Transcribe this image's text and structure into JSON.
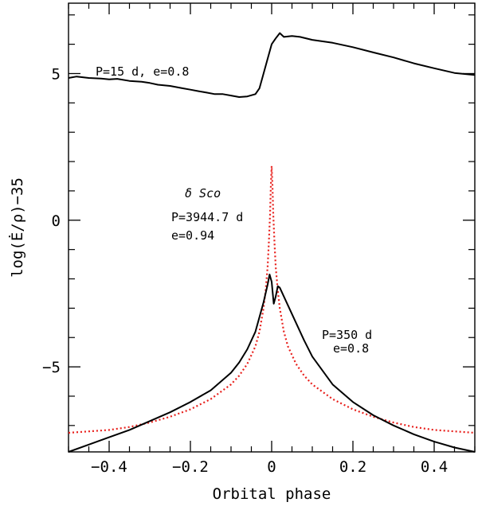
{
  "chart_data": {
    "type": "line",
    "title": "",
    "xlabel": "Orbital phase",
    "ylabel": "log(Ė/ρ)−35",
    "xlim": [
      -0.5,
      0.5
    ],
    "ylim": [
      -7.9,
      7.4
    ],
    "x_ticks_major": [
      -0.4,
      -0.2,
      0,
      0.2,
      0.4
    ],
    "x_tick_labels": [
      "−0.4",
      "−0.2",
      "0",
      "0.2",
      "0.4"
    ],
    "x_ticks_minor_step": 0.05,
    "y_ticks_major": [
      -5,
      0,
      5
    ],
    "y_tick_labels": [
      "−5",
      "0",
      "5"
    ],
    "y_ticks_minor_step": 1,
    "grid": false,
    "colors": {
      "solid": "#000000",
      "dotted": "#e8201c"
    },
    "series": [
      {
        "name": "P=15 d, e=0.8",
        "style": "solid",
        "color": "#000000",
        "points": [
          [
            -0.5,
            4.85
          ],
          [
            -0.48,
            4.9
          ],
          [
            -0.45,
            4.85
          ],
          [
            -0.42,
            4.83
          ],
          [
            -0.4,
            4.8
          ],
          [
            -0.38,
            4.82
          ],
          [
            -0.35,
            4.75
          ],
          [
            -0.32,
            4.72
          ],
          [
            -0.3,
            4.68
          ],
          [
            -0.28,
            4.62
          ],
          [
            -0.25,
            4.58
          ],
          [
            -0.22,
            4.5
          ],
          [
            -0.2,
            4.45
          ],
          [
            -0.18,
            4.4
          ],
          [
            -0.16,
            4.35
          ],
          [
            -0.14,
            4.3
          ],
          [
            -0.12,
            4.3
          ],
          [
            -0.1,
            4.25
          ],
          [
            -0.08,
            4.2
          ],
          [
            -0.06,
            4.22
          ],
          [
            -0.04,
            4.3
          ],
          [
            -0.03,
            4.5
          ],
          [
            -0.02,
            5.0
          ],
          [
            -0.01,
            5.5
          ],
          [
            0.0,
            6.0
          ],
          [
            0.01,
            6.2
          ],
          [
            0.02,
            6.38
          ],
          [
            0.03,
            6.25
          ],
          [
            0.05,
            6.28
          ],
          [
            0.07,
            6.25
          ],
          [
            0.1,
            6.15
          ],
          [
            0.15,
            6.05
          ],
          [
            0.2,
            5.9
          ],
          [
            0.25,
            5.72
          ],
          [
            0.3,
            5.55
          ],
          [
            0.35,
            5.35
          ],
          [
            0.4,
            5.18
          ],
          [
            0.45,
            5.02
          ],
          [
            0.5,
            4.95
          ]
        ]
      },
      {
        "name": "P=350 d, e=0.8",
        "style": "solid",
        "color": "#000000",
        "points": [
          [
            -0.5,
            -7.9
          ],
          [
            -0.45,
            -7.65
          ],
          [
            -0.4,
            -7.4
          ],
          [
            -0.35,
            -7.15
          ],
          [
            -0.3,
            -6.85
          ],
          [
            -0.25,
            -6.55
          ],
          [
            -0.2,
            -6.2
          ],
          [
            -0.15,
            -5.8
          ],
          [
            -0.1,
            -5.2
          ],
          [
            -0.08,
            -4.85
          ],
          [
            -0.06,
            -4.4
          ],
          [
            -0.04,
            -3.8
          ],
          [
            -0.02,
            -2.8
          ],
          [
            -0.01,
            -2.2
          ],
          [
            -0.005,
            -1.85
          ],
          [
            0.0,
            -2.1
          ],
          [
            0.005,
            -2.85
          ],
          [
            0.01,
            -2.6
          ],
          [
            0.015,
            -2.25
          ],
          [
            0.02,
            -2.3
          ],
          [
            0.04,
            -2.9
          ],
          [
            0.06,
            -3.5
          ],
          [
            0.08,
            -4.1
          ],
          [
            0.1,
            -4.65
          ],
          [
            0.15,
            -5.6
          ],
          [
            0.2,
            -6.2
          ],
          [
            0.25,
            -6.65
          ],
          [
            0.3,
            -7.0
          ],
          [
            0.35,
            -7.3
          ],
          [
            0.4,
            -7.55
          ],
          [
            0.45,
            -7.75
          ],
          [
            0.5,
            -7.9
          ]
        ]
      },
      {
        "name": "δ Sco",
        "style": "dotted",
        "color": "#e8201c",
        "points": [
          [
            -0.5,
            -7.25
          ],
          [
            -0.45,
            -7.2
          ],
          [
            -0.4,
            -7.15
          ],
          [
            -0.35,
            -7.05
          ],
          [
            -0.3,
            -6.9
          ],
          [
            -0.25,
            -6.7
          ],
          [
            -0.2,
            -6.45
          ],
          [
            -0.15,
            -6.1
          ],
          [
            -0.1,
            -5.6
          ],
          [
            -0.08,
            -5.3
          ],
          [
            -0.06,
            -4.9
          ],
          [
            -0.04,
            -4.3
          ],
          [
            -0.03,
            -3.8
          ],
          [
            -0.02,
            -3.0
          ],
          [
            -0.015,
            -2.4
          ],
          [
            -0.01,
            -1.6
          ],
          [
            -0.007,
            -0.8
          ],
          [
            -0.004,
            0.2
          ],
          [
            -0.002,
            1.2
          ],
          [
            0.0,
            1.85
          ],
          [
            0.002,
            1.2
          ],
          [
            0.004,
            0.2
          ],
          [
            0.007,
            -0.8
          ],
          [
            0.01,
            -1.6
          ],
          [
            0.015,
            -2.4
          ],
          [
            0.02,
            -3.0
          ],
          [
            0.03,
            -3.8
          ],
          [
            0.04,
            -4.3
          ],
          [
            0.06,
            -4.9
          ],
          [
            0.08,
            -5.3
          ],
          [
            0.1,
            -5.6
          ],
          [
            0.15,
            -6.1
          ],
          [
            0.2,
            -6.45
          ],
          [
            0.25,
            -6.7
          ],
          [
            0.3,
            -6.9
          ],
          [
            0.35,
            -7.05
          ],
          [
            0.4,
            -7.15
          ],
          [
            0.45,
            -7.2
          ],
          [
            0.5,
            -7.25
          ]
        ]
      }
    ],
    "annotations": {
      "p15": "P=15 d, e=0.8",
      "dsco": "δ Sco",
      "p3944": "P=3944.7 d",
      "e094": "e=0.94",
      "p350": "P=350 d",
      "e08": "e=0.8"
    }
  }
}
